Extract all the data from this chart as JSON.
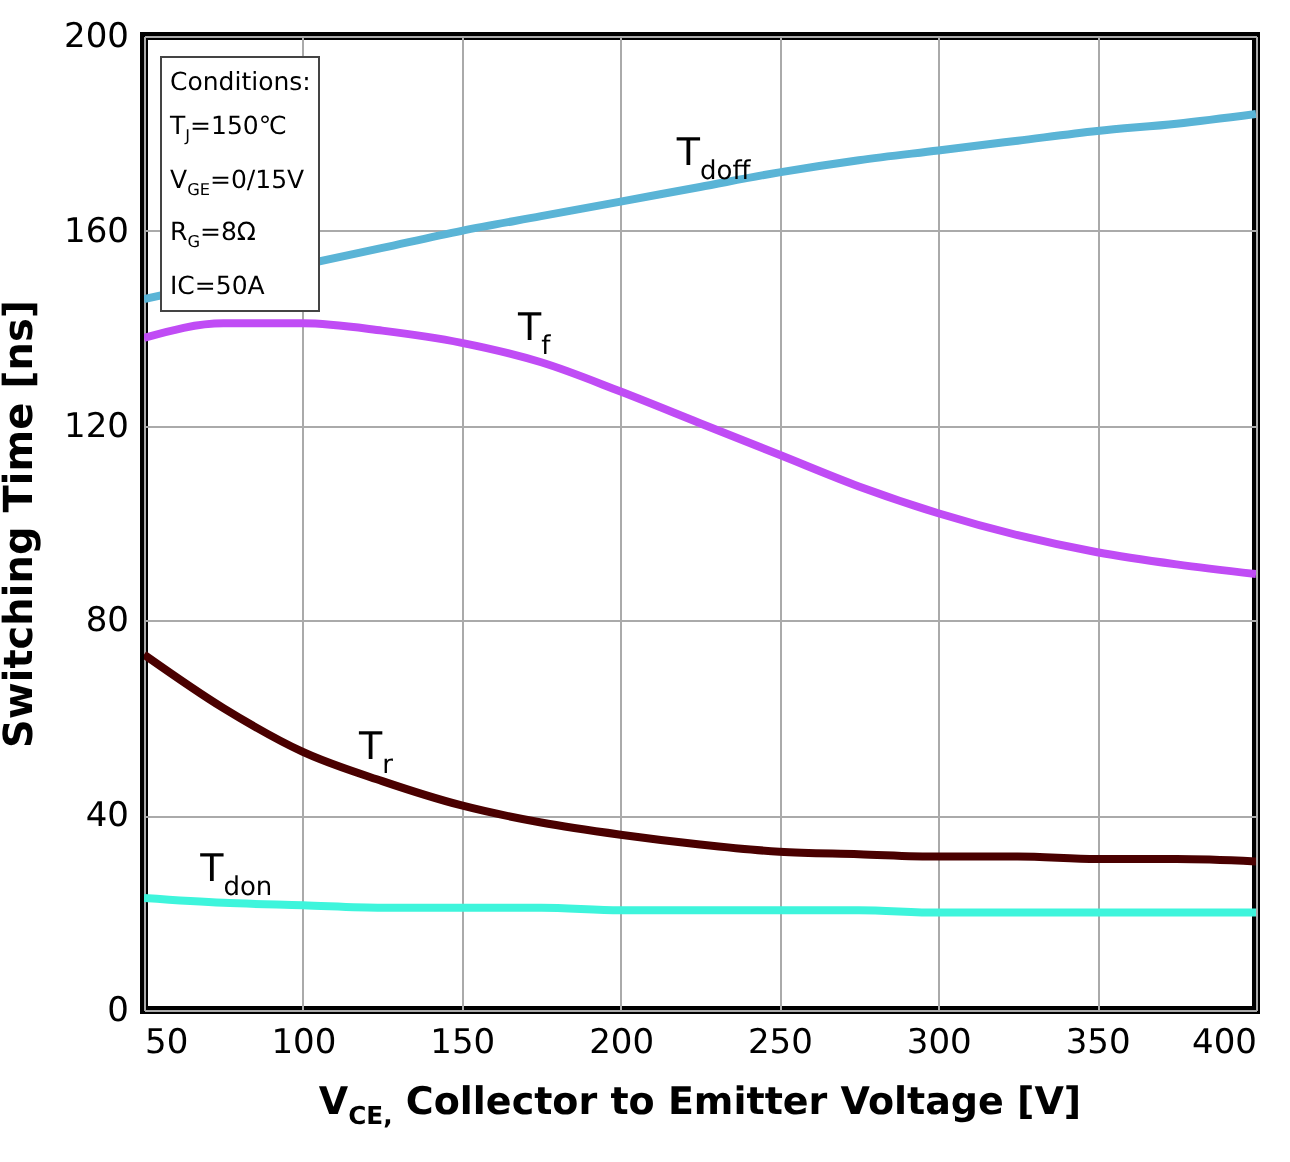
{
  "chart_data": {
    "type": "line",
    "xlabel": "V$_{CE,}$ Collector to Emitter Voltage [V]",
    "ylabel": "Switching Time [ns]",
    "x": [
      50,
      75,
      100,
      125,
      150,
      175,
      200,
      225,
      250,
      275,
      300,
      325,
      350,
      375,
      400
    ],
    "series": [
      {
        "name": "T$_{doff}$",
        "color": "#5ab4d6",
        "x": [
          50,
          125,
          150,
          175,
          200,
          225,
          250,
          275,
          300,
          325,
          350,
          375,
          400
        ],
        "values": [
          146,
          156.5,
          160,
          163,
          166,
          169,
          172,
          174.5,
          176.5,
          178.5,
          180.5,
          182,
          184
        ]
      },
      {
        "name": "T$_{f}$",
        "color": "#c04cf5",
        "values": [
          138,
          141,
          141,
          139.5,
          137,
          133,
          127,
          120.5,
          114,
          107.5,
          102,
          97.5,
          94,
          91.5,
          89.5
        ]
      },
      {
        "name": "T$_{r}$",
        "color": "#4a0000",
        "values": [
          73,
          62,
          53,
          47,
          42,
          38.5,
          36,
          34,
          32.5,
          32,
          31.5,
          31.5,
          31,
          31,
          30.5
        ]
      },
      {
        "name": "T$_{don}$",
        "color": "#3ef5dc",
        "values": [
          23,
          22,
          21.5,
          21,
          21,
          21,
          20.5,
          20.5,
          20.5,
          20.5,
          20,
          20,
          20,
          20,
          20
        ]
      }
    ],
    "xlim": [
      50,
      400
    ],
    "xticks": [
      50,
      100,
      150,
      200,
      250,
      300,
      350,
      400
    ],
    "ylim": [
      0,
      200
    ],
    "yticks": [
      0,
      40,
      80,
      120,
      160,
      200
    ],
    "grid": true,
    "annotations": [
      "Conditions:",
      "T$_{J}$=150℃",
      "V$_{GE}$=0/15V",
      "R$_{G}$=8Ω",
      "IC=50A"
    ]
  }
}
